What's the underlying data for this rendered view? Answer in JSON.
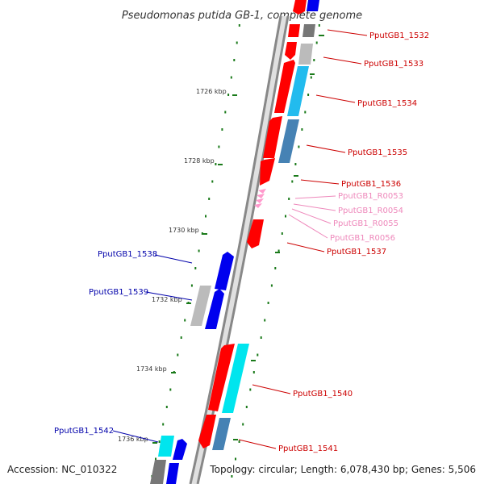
{
  "title": "Pseudomonas putida GB-1, complete genome",
  "footer": {
    "accession": "Accession: NC_010322",
    "summary": "Topology: circular; Length: 6,078,430 bp; Genes: 5,506"
  },
  "colors": {
    "axis": "#888888",
    "tick": "#1a7a1a",
    "label_red": "#cc0000",
    "label_pink": "#ee88bb",
    "label_blue": "#0000aa",
    "red": "#ff0000",
    "pink": "#ff99cc",
    "blue": "#0000ee",
    "cyan": "#00e5ee",
    "sky": "#22bbee",
    "steel": "#4682b4",
    "gray": "#777777",
    "lightgray": "#bbbbbb"
  },
  "scale_labels": [
    {
      "text": "1726 kbp"
    },
    {
      "text": "1728 kbp"
    },
    {
      "text": "1730 kbp"
    },
    {
      "text": "1732 kbp"
    },
    {
      "text": "1734 kbp"
    },
    {
      "text": "1736 kbp"
    }
  ],
  "gene_labels": [
    {
      "text": "PputGB1_1532",
      "color": "label_red"
    },
    {
      "text": "PputGB1_1533",
      "color": "label_red"
    },
    {
      "text": "PputGB1_1534",
      "color": "label_red"
    },
    {
      "text": "PputGB1_1535",
      "color": "label_red"
    },
    {
      "text": "PputGB1_1536",
      "color": "label_red"
    },
    {
      "text": "PputGB1_R0053",
      "color": "label_pink"
    },
    {
      "text": "PputGB1_R0054",
      "color": "label_pink"
    },
    {
      "text": "PputGB1_R0055",
      "color": "label_pink"
    },
    {
      "text": "PputGB1_R0056",
      "color": "label_pink"
    },
    {
      "text": "PputGB1_1537",
      "color": "label_red"
    },
    {
      "text": "PputGB1_1538",
      "color": "label_blue"
    },
    {
      "text": "PputGB1_1539",
      "color": "label_blue"
    },
    {
      "text": "PputGB1_1540",
      "color": "label_red"
    },
    {
      "text": "PputGB1_1541",
      "color": "label_red"
    },
    {
      "text": "PputGB1_1542",
      "color": "label_blue"
    }
  ]
}
